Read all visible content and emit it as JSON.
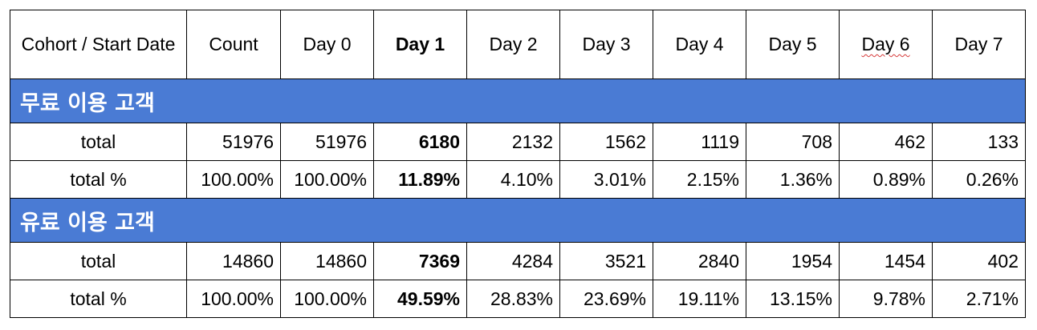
{
  "header": {
    "cohort": "Cohort / Start Date",
    "columns": [
      "Count",
      "Day 0",
      "Day 1",
      "Day 2",
      "Day 3",
      "Day 4",
      "Day 5",
      "Day 6",
      "Day 7"
    ]
  },
  "sections": [
    {
      "title": "무료 이용 고객",
      "rows": [
        {
          "label": "total",
          "values": [
            "51976",
            "51976",
            "6180",
            "2132",
            "1562",
            "1119",
            "708",
            "462",
            "133"
          ]
        },
        {
          "label": "total %",
          "values": [
            "100.00%",
            "100.00%",
            "11.89%",
            "4.10%",
            "3.01%",
            "2.15%",
            "1.36%",
            "0.89%",
            "0.26%"
          ]
        }
      ]
    },
    {
      "title": "유료 이용 고객",
      "rows": [
        {
          "label": "total",
          "values": [
            "14860",
            "14860",
            "7369",
            "4284",
            "3521",
            "2840",
            "1954",
            "1454",
            "402"
          ]
        },
        {
          "label": "total %",
          "values": [
            "100.00%",
            "100.00%",
            "49.59%",
            "28.83%",
            "23.69%",
            "19.11%",
            "13.15%",
            "9.78%",
            "2.71%"
          ]
        }
      ]
    }
  ]
}
